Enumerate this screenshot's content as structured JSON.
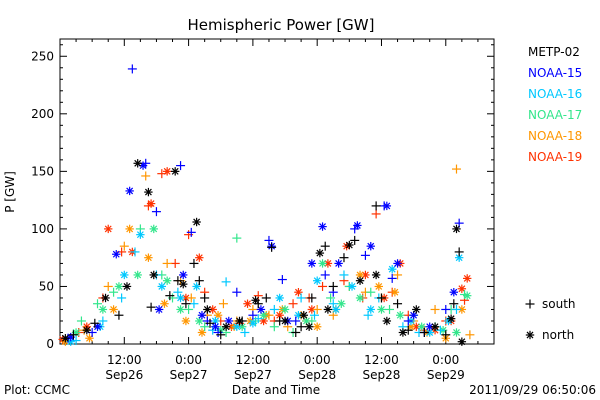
{
  "chart_data": {
    "type": "scatter",
    "title": "Hemispheric Power [GW]",
    "ylabel": "P [GW]",
    "xlabel": "Date and Time",
    "credit": "Plot: CCMC",
    "timestamp": "2011/09/29 06:50:06",
    "ylim": [
      0,
      265
    ],
    "xlim": [
      0,
      81
    ],
    "xunit": "hours since Sep26 00:00",
    "yticks": [
      0,
      50,
      100,
      150,
      200,
      250
    ],
    "xticks": [
      {
        "x": 12,
        "time": "12:00",
        "date": "Sep26"
      },
      {
        "x": 24,
        "time": "0:00",
        "date": "Sep27"
      },
      {
        "x": 36,
        "time": "12:00",
        "date": "Sep27"
      },
      {
        "x": 48,
        "time": "0:00",
        "date": "Sep28"
      },
      {
        "x": 60,
        "time": "12:00",
        "date": "Sep28"
      },
      {
        "x": 72,
        "time": "0:00",
        "date": "Sep29"
      }
    ],
    "marker_legend": [
      {
        "symbol": "+",
        "label": "south"
      },
      {
        "symbol": "*",
        "label": "north"
      }
    ],
    "series": [
      {
        "name": "METP-02",
        "color": "#000000",
        "south": [
          [
            2.5,
            8
          ],
          [
            6.5,
            18
          ],
          [
            11,
            25
          ],
          [
            17,
            32
          ],
          [
            20.5,
            42
          ],
          [
            22,
            55
          ],
          [
            23.5,
            35
          ],
          [
            25,
            70
          ],
          [
            26,
            55
          ],
          [
            27,
            40
          ],
          [
            28,
            18
          ],
          [
            30,
            8
          ],
          [
            34,
            20
          ],
          [
            37,
            35
          ],
          [
            38.5,
            40
          ],
          [
            39.5,
            84
          ],
          [
            41,
            20
          ],
          [
            44,
            10
          ],
          [
            45,
            15
          ],
          [
            47,
            40
          ],
          [
            49.5,
            85
          ],
          [
            51,
            50
          ],
          [
            53,
            75
          ],
          [
            55,
            90
          ],
          [
            59,
            120
          ],
          [
            60,
            40
          ],
          [
            63,
            35
          ],
          [
            65,
            12
          ],
          [
            68,
            10
          ],
          [
            72,
            8
          ],
          [
            73.5,
            35
          ],
          [
            74.5,
            80
          ]
        ],
        "north": [
          [
            1,
            5
          ],
          [
            5,
            12
          ],
          [
            8.5,
            40
          ],
          [
            12.5,
            50
          ],
          [
            14.5,
            157
          ],
          [
            16.5,
            132
          ],
          [
            17.5,
            60
          ],
          [
            21.5,
            150
          ],
          [
            23,
            52
          ],
          [
            25.5,
            106
          ],
          [
            27.5,
            30
          ],
          [
            31,
            15
          ],
          [
            33.5,
            20
          ],
          [
            36.5,
            38
          ],
          [
            42,
            20
          ],
          [
            45.5,
            25
          ],
          [
            46.5,
            15
          ],
          [
            48.5,
            79
          ],
          [
            50,
            30
          ],
          [
            54,
            86
          ],
          [
            56,
            55
          ],
          [
            59,
            60
          ],
          [
            61,
            20
          ],
          [
            64,
            10
          ],
          [
            66.5,
            30
          ],
          [
            70,
            15
          ],
          [
            73,
            22
          ],
          [
            74,
            100
          ],
          [
            75,
            2
          ]
        ]
      },
      {
        "name": "NOAA-15",
        "color": "#0000ff",
        "south": [
          [
            1.5,
            5
          ],
          [
            6,
            10
          ],
          [
            13.5,
            239
          ],
          [
            16,
            157
          ],
          [
            18,
            115
          ],
          [
            22.5,
            155
          ],
          [
            24.5,
            97
          ],
          [
            27.5,
            20
          ],
          [
            29.5,
            10
          ],
          [
            33,
            45
          ],
          [
            36,
            25
          ],
          [
            39,
            90
          ],
          [
            41.5,
            56
          ],
          [
            44,
            20
          ],
          [
            49.5,
            60
          ],
          [
            51,
            45
          ],
          [
            55,
            100
          ],
          [
            57,
            77
          ],
          [
            60.5,
            120
          ],
          [
            62,
            57
          ],
          [
            65,
            20
          ],
          [
            68,
            10
          ],
          [
            72,
            30
          ],
          [
            74.5,
            105
          ]
        ],
        "north": [
          [
            2,
            6
          ],
          [
            7,
            15
          ],
          [
            10.5,
            78
          ],
          [
            13,
            133
          ],
          [
            15.5,
            155
          ],
          [
            18.5,
            30
          ],
          [
            23,
            60
          ],
          [
            26.5,
            25
          ],
          [
            29,
            15
          ],
          [
            31.5,
            20
          ],
          [
            37.5,
            30
          ],
          [
            39.5,
            85
          ],
          [
            42.5,
            20
          ],
          [
            47,
            70
          ],
          [
            49,
            102
          ],
          [
            52,
            70
          ],
          [
            55.5,
            103
          ],
          [
            58,
            85
          ],
          [
            61,
            120
          ],
          [
            63,
            70
          ],
          [
            66,
            25
          ],
          [
            69,
            15
          ],
          [
            73.5,
            45
          ]
        ]
      },
      {
        "name": "NOAA-16",
        "color": "#00c8ff",
        "south": [
          [
            3,
            3
          ],
          [
            8,
            20
          ],
          [
            11.5,
            40
          ],
          [
            14,
            80
          ],
          [
            18,
            60
          ],
          [
            22,
            45
          ],
          [
            25,
            35
          ],
          [
            28.5,
            12
          ],
          [
            31,
            54
          ],
          [
            34.5,
            10
          ],
          [
            37,
            22
          ],
          [
            40,
            30
          ],
          [
            45,
            40
          ],
          [
            47.5,
            25
          ],
          [
            51,
            35
          ],
          [
            53,
            60
          ],
          [
            57.5,
            25
          ],
          [
            59.5,
            40
          ],
          [
            64,
            15
          ],
          [
            67,
            10
          ],
          [
            71,
            12
          ],
          [
            74,
            30
          ]
        ],
        "north": [
          [
            2,
            2
          ],
          [
            7.5,
            15
          ],
          [
            12,
            60
          ],
          [
            15,
            95
          ],
          [
            19,
            50
          ],
          [
            22.5,
            40
          ],
          [
            25.5,
            50
          ],
          [
            29,
            20
          ],
          [
            33,
            15
          ],
          [
            36,
            18
          ],
          [
            41,
            40
          ],
          [
            44.5,
            25
          ],
          [
            48,
            55
          ],
          [
            51.5,
            30
          ],
          [
            54.5,
            50
          ],
          [
            58,
            30
          ],
          [
            62,
            65
          ],
          [
            65.5,
            20
          ],
          [
            69,
            10
          ],
          [
            72.5,
            20
          ],
          [
            74.5,
            75
          ]
        ]
      },
      {
        "name": "NOAA-17",
        "color": "#33e68c",
        "south": [
          [
            4,
            20
          ],
          [
            7,
            35
          ],
          [
            10,
            45
          ],
          [
            15,
            100
          ],
          [
            19,
            60
          ],
          [
            21,
            40
          ],
          [
            24,
            30
          ],
          [
            27,
            15
          ],
          [
            31,
            10
          ],
          [
            33,
            92
          ],
          [
            36.5,
            20
          ],
          [
            40,
            15
          ],
          [
            43.5,
            10
          ],
          [
            47,
            20
          ],
          [
            50.5,
            40
          ],
          [
            54,
            50
          ],
          [
            58,
            45
          ],
          [
            61.5,
            30
          ],
          [
            66,
            25
          ],
          [
            70,
            15
          ],
          [
            73,
            30
          ],
          [
            75.5,
            43
          ]
        ],
        "north": [
          [
            3,
            10
          ],
          [
            8,
            30
          ],
          [
            11,
            50
          ],
          [
            14.5,
            60
          ],
          [
            17.5,
            100
          ],
          [
            20,
            55
          ],
          [
            22.5,
            30
          ],
          [
            26,
            20
          ],
          [
            30,
            12
          ],
          [
            34,
            15
          ],
          [
            38,
            25
          ],
          [
            42,
            30
          ],
          [
            46,
            20
          ],
          [
            49,
            70
          ],
          [
            52.5,
            35
          ],
          [
            56,
            40
          ],
          [
            60,
            30
          ],
          [
            63.5,
            25
          ],
          [
            67.5,
            15
          ],
          [
            71.5,
            12
          ],
          [
            74,
            10
          ],
          [
            76,
            42
          ]
        ]
      },
      {
        "name": "NOAA-18",
        "color": "#ff9600",
        "south": [
          [
            4.5,
            12
          ],
          [
            9,
            50
          ],
          [
            12,
            85
          ],
          [
            16,
            146
          ],
          [
            20,
            70
          ],
          [
            22.5,
            55
          ],
          [
            24.5,
            40
          ],
          [
            27.5,
            25
          ],
          [
            30.5,
            35
          ],
          [
            33,
            20
          ],
          [
            36,
            30
          ],
          [
            39,
            25
          ],
          [
            42.5,
            15
          ],
          [
            46,
            20
          ],
          [
            48,
            30
          ],
          [
            51,
            25
          ],
          [
            54,
            50
          ],
          [
            57,
            45
          ],
          [
            60,
            40
          ],
          [
            63,
            60
          ],
          [
            66,
            20
          ],
          [
            70,
            30
          ],
          [
            74,
            152
          ],
          [
            76.5,
            8
          ]
        ],
        "north": [
          [
            1,
            2
          ],
          [
            5.5,
            5
          ],
          [
            10,
            30
          ],
          [
            13,
            100
          ],
          [
            16.5,
            75
          ],
          [
            19.5,
            35
          ],
          [
            23.5,
            20
          ],
          [
            26.5,
            10
          ],
          [
            29.5,
            25
          ],
          [
            32.5,
            15
          ],
          [
            35.5,
            20
          ],
          [
            38.5,
            25
          ],
          [
            41.5,
            30
          ],
          [
            45,
            25
          ],
          [
            48,
            15
          ],
          [
            51.5,
            30
          ],
          [
            56,
            60
          ],
          [
            59.5,
            50
          ],
          [
            62.5,
            45
          ],
          [
            65.5,
            15
          ],
          [
            68.5,
            10
          ],
          [
            72,
            5
          ],
          [
            75,
            30
          ]
        ]
      },
      {
        "name": "NOAA-19",
        "color": "#ff3200",
        "south": [
          [
            3.5,
            10
          ],
          [
            8,
            40
          ],
          [
            11.5,
            80
          ],
          [
            16.5,
            120
          ],
          [
            19,
            148
          ],
          [
            21.5,
            70
          ],
          [
            24,
            95
          ],
          [
            27,
            45
          ],
          [
            30,
            20
          ],
          [
            33.5,
            18
          ],
          [
            37,
            42
          ],
          [
            40,
            20
          ],
          [
            43.5,
            35
          ],
          [
            46.5,
            40
          ],
          [
            49,
            50
          ],
          [
            53,
            55
          ],
          [
            56.5,
            40
          ],
          [
            59,
            113
          ],
          [
            62,
            45
          ],
          [
            65,
            25
          ],
          [
            68,
            12
          ],
          [
            72,
            20
          ],
          [
            75.5,
            38
          ]
        ],
        "north": [
          [
            0.5,
            4
          ],
          [
            5,
            15
          ],
          [
            9,
            100
          ],
          [
            13.5,
            80
          ],
          [
            17,
            122
          ],
          [
            20,
            150
          ],
          [
            23.5,
            40
          ],
          [
            26,
            75
          ],
          [
            28.5,
            30
          ],
          [
            32,
            15
          ],
          [
            35,
            35
          ],
          [
            38,
            20
          ],
          [
            41,
            25
          ],
          [
            44.5,
            45
          ],
          [
            47,
            30
          ],
          [
            50,
            70
          ],
          [
            53.5,
            85
          ],
          [
            57,
            60
          ],
          [
            60.5,
            40
          ],
          [
            63.5,
            70
          ],
          [
            66.5,
            15
          ],
          [
            70,
            12
          ],
          [
            73,
            20
          ],
          [
            75,
            48
          ],
          [
            76,
            57
          ]
        ]
      }
    ]
  }
}
